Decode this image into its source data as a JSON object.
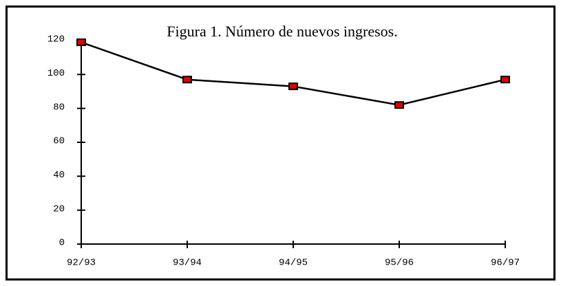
{
  "chart_data": {
    "type": "line",
    "title": "Figura 1. Número de nuevos ingresos.",
    "categories": [
      "92/93",
      "93/94",
      "94/95",
      "95/96",
      "96/97"
    ],
    "series": [
      {
        "name": null,
        "color": "#000000",
        "marker_color": "#e00000",
        "values": [
          119,
          97,
          93,
          82,
          97
        ]
      }
    ],
    "ylim": [
      0,
      120
    ],
    "yticks": [
      0,
      20,
      40,
      60,
      80,
      100,
      120
    ],
    "grid": false
  }
}
